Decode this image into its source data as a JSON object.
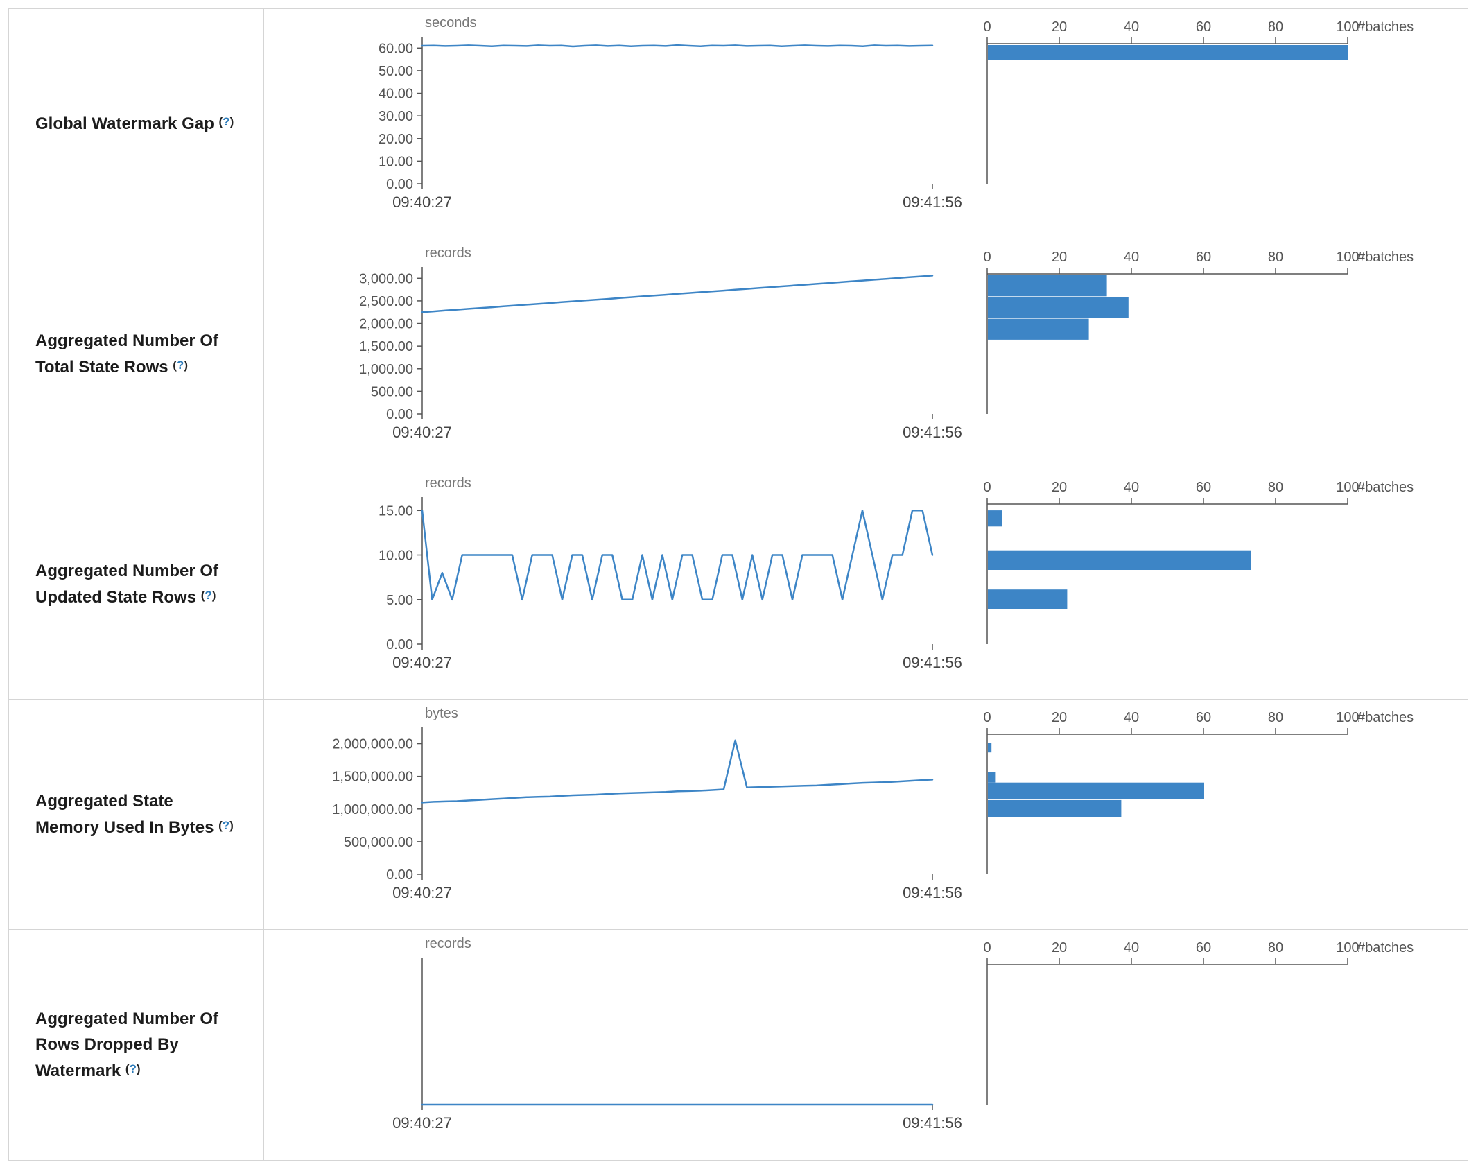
{
  "page": {
    "accent_color": "#3d85c6",
    "axis_color": "#555555",
    "help": {
      "open": "(",
      "q": "?",
      "close": ")"
    },
    "batches_axis_label": "#batches"
  },
  "chart_data": [
    {
      "type": "line",
      "title": "Global Watermark Gap",
      "label": "Global Watermark Gap",
      "unit": "seconds",
      "x_ticks": [
        "09:40:27",
        "09:41:56"
      ],
      "y_max": 65,
      "y_ticks": [
        {
          "v": 0,
          "label": "0.00"
        },
        {
          "v": 10,
          "label": "10.00"
        },
        {
          "v": 20,
          "label": "20.00"
        },
        {
          "v": 30,
          "label": "30.00"
        },
        {
          "v": 40,
          "label": "40.00"
        },
        {
          "v": 50,
          "label": "50.00"
        },
        {
          "v": 60,
          "label": "60.00"
        }
      ],
      "values": [
        61.0,
        61.1,
        60.9,
        61.0,
        61.2,
        61.0,
        60.8,
        61.1,
        61.0,
        60.9,
        61.2,
        61.0,
        61.1,
        60.7,
        61.0,
        61.2,
        60.9,
        61.1,
        60.8,
        61.0,
        61.1,
        60.9,
        61.3,
        61.0,
        60.8,
        61.1,
        61.0,
        61.2,
        60.9,
        61.0,
        61.1,
        60.8,
        61.0,
        61.2,
        61.0,
        60.9,
        61.1,
        61.0,
        60.8,
        61.2,
        61.0,
        61.1,
        60.9,
        61.0,
        61.1
      ],
      "histogram": {
        "type": "bar",
        "x_label": "#batches",
        "x_ticks": [
          0,
          20,
          40,
          60,
          80,
          100
        ],
        "x_max": 100,
        "bins": [
          {
            "batches": 100,
            "y_frac": 0.01,
            "h_frac": 0.105
          }
        ]
      }
    },
    {
      "type": "line",
      "title": "Aggregated Number Of Total State Rows",
      "label": "Aggregated Number Of Total State Rows",
      "unit": "records",
      "x_ticks": [
        "09:40:27",
        "09:41:56"
      ],
      "y_max": 3250,
      "y_ticks": [
        {
          "v": 0,
          "label": "0.00"
        },
        {
          "v": 500,
          "label": "500.00"
        },
        {
          "v": 1000,
          "label": "1,000.00"
        },
        {
          "v": 1500,
          "label": "1,500.00"
        },
        {
          "v": 2000,
          "label": "2,000.00"
        },
        {
          "v": 2500,
          "label": "2,500.00"
        },
        {
          "v": 3000,
          "label": "3,000.00"
        }
      ],
      "values": [
        2250,
        2268,
        2287,
        2305,
        2324,
        2342,
        2360,
        2379,
        2397,
        2416,
        2434,
        2452,
        2471,
        2489,
        2508,
        2526,
        2544,
        2563,
        2581,
        2600,
        2618,
        2636,
        2655,
        2673,
        2692,
        2710,
        2728,
        2747,
        2765,
        2784,
        2802,
        2820,
        2839,
        2857,
        2876,
        2894,
        2912,
        2931,
        2949,
        2968,
        2986,
        3004,
        3023,
        3041,
        3060
      ],
      "histogram": {
        "type": "bar",
        "x_label": "#batches",
        "x_ticks": [
          0,
          20,
          40,
          60,
          80,
          100
        ],
        "x_max": 100,
        "bins": [
          {
            "batches": 33,
            "y_frac": 0.01,
            "h_frac": 0.15
          },
          {
            "batches": 39,
            "y_frac": 0.165,
            "h_frac": 0.15
          },
          {
            "batches": 28,
            "y_frac": 0.32,
            "h_frac": 0.15
          }
        ]
      }
    },
    {
      "type": "line",
      "title": "Aggregated Number Of Updated State Rows",
      "label": "Aggregated Number Of Updated State Rows",
      "unit": "records",
      "x_ticks": [
        "09:40:27",
        "09:41:56"
      ],
      "y_max": 16.5,
      "y_ticks": [
        {
          "v": 0,
          "label": "0.00"
        },
        {
          "v": 5,
          "label": "5.00"
        },
        {
          "v": 10,
          "label": "10.00"
        },
        {
          "v": 15,
          "label": "15.00"
        }
      ],
      "values": [
        15,
        5,
        8,
        5,
        10,
        10,
        10,
        10,
        10,
        10,
        5,
        10,
        10,
        10,
        5,
        10,
        10,
        5,
        10,
        10,
        5,
        5,
        10,
        5,
        10,
        5,
        10,
        10,
        5,
        5,
        10,
        10,
        5,
        10,
        5,
        10,
        10,
        5,
        10,
        10,
        10,
        10,
        5,
        10,
        15,
        10,
        5,
        10,
        10,
        15,
        15,
        10
      ],
      "histogram": {
        "type": "bar",
        "x_label": "#batches",
        "x_ticks": [
          0,
          20,
          40,
          60,
          80,
          100
        ],
        "x_max": 100,
        "bins": [
          {
            "batches": 4,
            "y_frac": 0.045,
            "h_frac": 0.115
          },
          {
            "batches": 73,
            "y_frac": 0.33,
            "h_frac": 0.14
          },
          {
            "batches": 22,
            "y_frac": 0.61,
            "h_frac": 0.14
          }
        ]
      }
    },
    {
      "type": "line",
      "title": "Aggregated State Memory Used In Bytes",
      "label": "Aggregated State Memory Used In Bytes",
      "unit": "bytes",
      "x_ticks": [
        "09:40:27",
        "09:41:56"
      ],
      "y_max": 2250000,
      "y_ticks": [
        {
          "v": 0,
          "label": "0.00"
        },
        {
          "v": 500000,
          "label": "500,000.00"
        },
        {
          "v": 1000000,
          "label": "1,000,000.00"
        },
        {
          "v": 1500000,
          "label": "1,500,000.00"
        },
        {
          "v": 2000000,
          "label": "2,000,000.00"
        }
      ],
      "values": [
        1100000,
        1110000,
        1115000,
        1120000,
        1130000,
        1140000,
        1150000,
        1160000,
        1170000,
        1180000,
        1185000,
        1190000,
        1200000,
        1210000,
        1215000,
        1220000,
        1230000,
        1240000,
        1245000,
        1250000,
        1255000,
        1260000,
        1270000,
        1275000,
        1280000,
        1290000,
        1300000,
        2050000,
        1330000,
        1335000,
        1340000,
        1345000,
        1350000,
        1355000,
        1360000,
        1370000,
        1380000,
        1390000,
        1400000,
        1405000,
        1410000,
        1420000,
        1430000,
        1440000,
        1450000
      ],
      "histogram": {
        "type": "bar",
        "x_label": "#batches",
        "x_ticks": [
          0,
          20,
          40,
          60,
          80,
          100
        ],
        "x_max": 100,
        "bins": [
          {
            "batches": 1,
            "y_frac": 0.06,
            "h_frac": 0.07
          },
          {
            "batches": 2,
            "y_frac": 0.27,
            "h_frac": 0.075
          },
          {
            "batches": 60,
            "y_frac": 0.345,
            "h_frac": 0.12
          },
          {
            "batches": 37,
            "y_frac": 0.47,
            "h_frac": 0.12
          }
        ]
      }
    },
    {
      "type": "line",
      "title": "Aggregated Number Of Rows Dropped By Watermark",
      "label": "Aggregated Number Of Rows Dropped By Watermark",
      "unit": "records",
      "x_ticks": [
        "09:40:27",
        "09:41:56"
      ],
      "y_max": 1,
      "y_ticks": [],
      "values": [
        0,
        0,
        0,
        0,
        0,
        0,
        0,
        0,
        0,
        0,
        0,
        0,
        0,
        0,
        0,
        0,
        0,
        0,
        0,
        0,
        0,
        0,
        0,
        0,
        0,
        0,
        0,
        0,
        0,
        0,
        0,
        0,
        0,
        0,
        0,
        0,
        0,
        0,
        0,
        0,
        0,
        0,
        0,
        0,
        0
      ],
      "histogram": {
        "type": "bar",
        "x_label": "#batches",
        "x_ticks": [
          0,
          20,
          40,
          60,
          80,
          100
        ],
        "x_max": 100,
        "bins": []
      }
    }
  ]
}
